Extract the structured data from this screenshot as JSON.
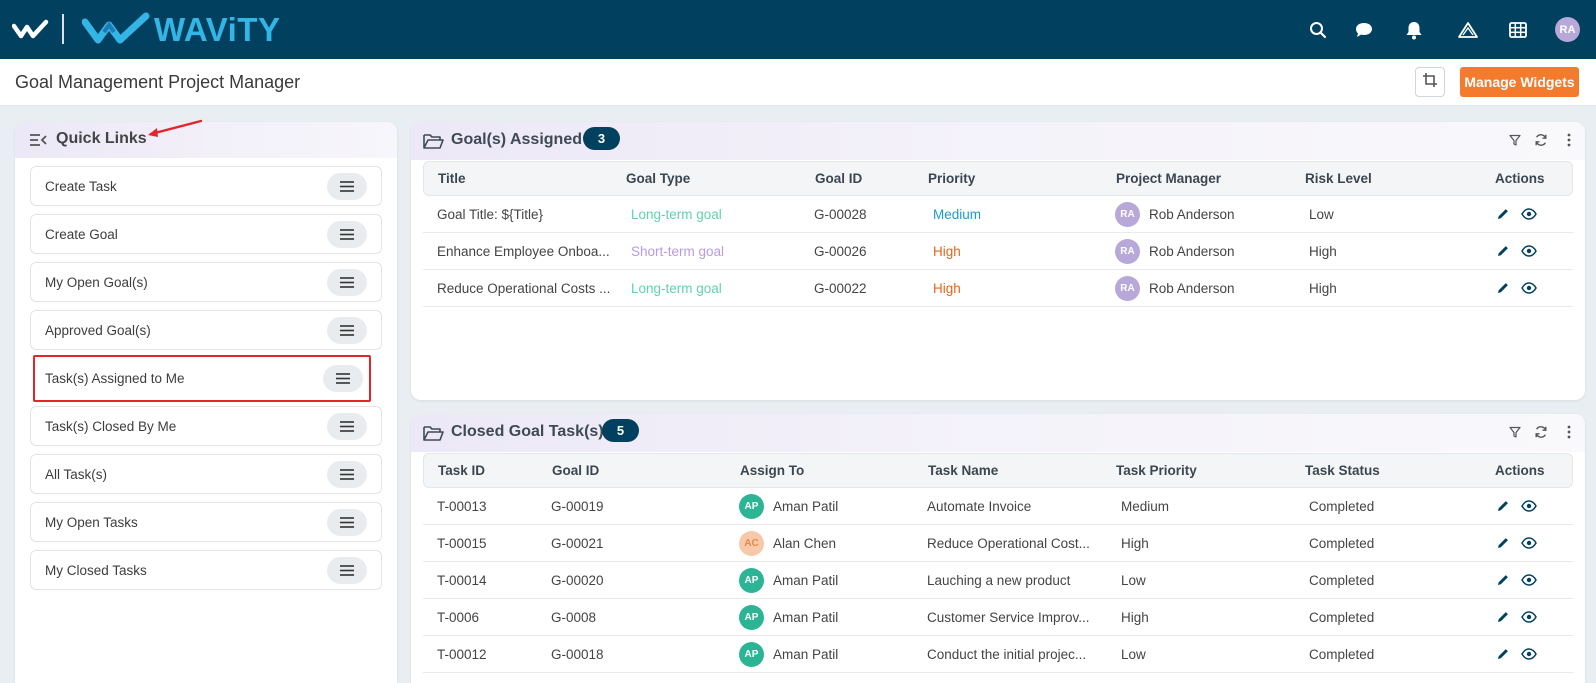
{
  "colors": {
    "topbar": "#01415f",
    "brand": "#33b5e5",
    "accent_orange": "#f47a2c",
    "count_badge": "#01415f",
    "long_term": "#5fd3b0",
    "short_term": "#b89be0",
    "priority_medium": "#1e9ad6",
    "priority_high": "#e4661e",
    "avatar_ra": "#b7a8d9",
    "avatar_ap": "#2bb594",
    "avatar_ac": "#f7c9a8",
    "highlight_box": "#e3262b"
  },
  "topbar": {
    "brand": "WAViTY",
    "icons": [
      "search-icon",
      "chat-icon",
      "bell-icon",
      "warning-triangle-icon",
      "grid-icon"
    ],
    "user_initials": "RA"
  },
  "header": {
    "title": "Goal Management Project Manager",
    "manage_widgets_label": "Manage Widgets"
  },
  "quick_links": {
    "title": "Quick Links",
    "items": [
      {
        "label": "Create Task"
      },
      {
        "label": "Create Goal"
      },
      {
        "label": "My Open Goal(s)"
      },
      {
        "label": "Approved Goal(s)"
      },
      {
        "label": "Task(s) Assigned to Me",
        "highlighted": true
      },
      {
        "label": "Task(s) Closed By Me"
      },
      {
        "label": "All Task(s)"
      },
      {
        "label": "My Open Tasks"
      },
      {
        "label": "My Closed Tasks"
      }
    ]
  },
  "goals_panel": {
    "title": "Goal(s) Assigned",
    "count": "3",
    "columns": [
      "Title",
      "Goal Type",
      "Goal ID",
      "Priority",
      "Project Manager",
      "Risk Level",
      "Actions"
    ],
    "rows": [
      {
        "title": "Goal Title: ${Title}",
        "goal_type": "Long-term goal",
        "goal_id": "G-00028",
        "priority": "Medium",
        "pm_initials": "RA",
        "pm": "Rob Anderson",
        "risk": "Low"
      },
      {
        "title": "Enhance Employee Onboa...",
        "goal_type": "Short-term goal",
        "goal_id": "G-00026",
        "priority": "High",
        "pm_initials": "RA",
        "pm": "Rob Anderson",
        "risk": "High"
      },
      {
        "title": "Reduce Operational Costs ...",
        "goal_type": "Long-term goal",
        "goal_id": "G-00022",
        "priority": "High",
        "pm_initials": "RA",
        "pm": "Rob Anderson",
        "risk": "High"
      }
    ]
  },
  "tasks_panel": {
    "title": "Closed Goal Task(s)",
    "count": "5",
    "columns": [
      "Task ID",
      "Goal ID",
      "Assign To",
      "Task Name",
      "Task Priority",
      "Task Status",
      "Actions"
    ],
    "rows": [
      {
        "task_id": "T-00013",
        "goal_id": "G-00019",
        "initials": "AP",
        "assignee": "Aman Patil",
        "task_name": "Automate Invoice",
        "priority": "Medium",
        "status": "Completed"
      },
      {
        "task_id": "T-00015",
        "goal_id": "G-00021",
        "initials": "AC",
        "assignee": "Alan Chen",
        "task_name": "Reduce Operational Cost...",
        "priority": "High",
        "status": "Completed"
      },
      {
        "task_id": "T-00014",
        "goal_id": "G-00020",
        "initials": "AP",
        "assignee": "Aman Patil",
        "task_name": "Lauching a new product",
        "priority": "Low",
        "status": "Completed"
      },
      {
        "task_id": "T-0006",
        "goal_id": "G-0008",
        "initials": "AP",
        "assignee": "Aman Patil",
        "task_name": "Customer Service Improv...",
        "priority": "High",
        "status": "Completed"
      },
      {
        "task_id": "T-00012",
        "goal_id": "G-00018",
        "initials": "AP",
        "assignee": "Aman Patil",
        "task_name": "Conduct the initial projec...",
        "priority": "Low",
        "status": "Completed"
      }
    ]
  }
}
